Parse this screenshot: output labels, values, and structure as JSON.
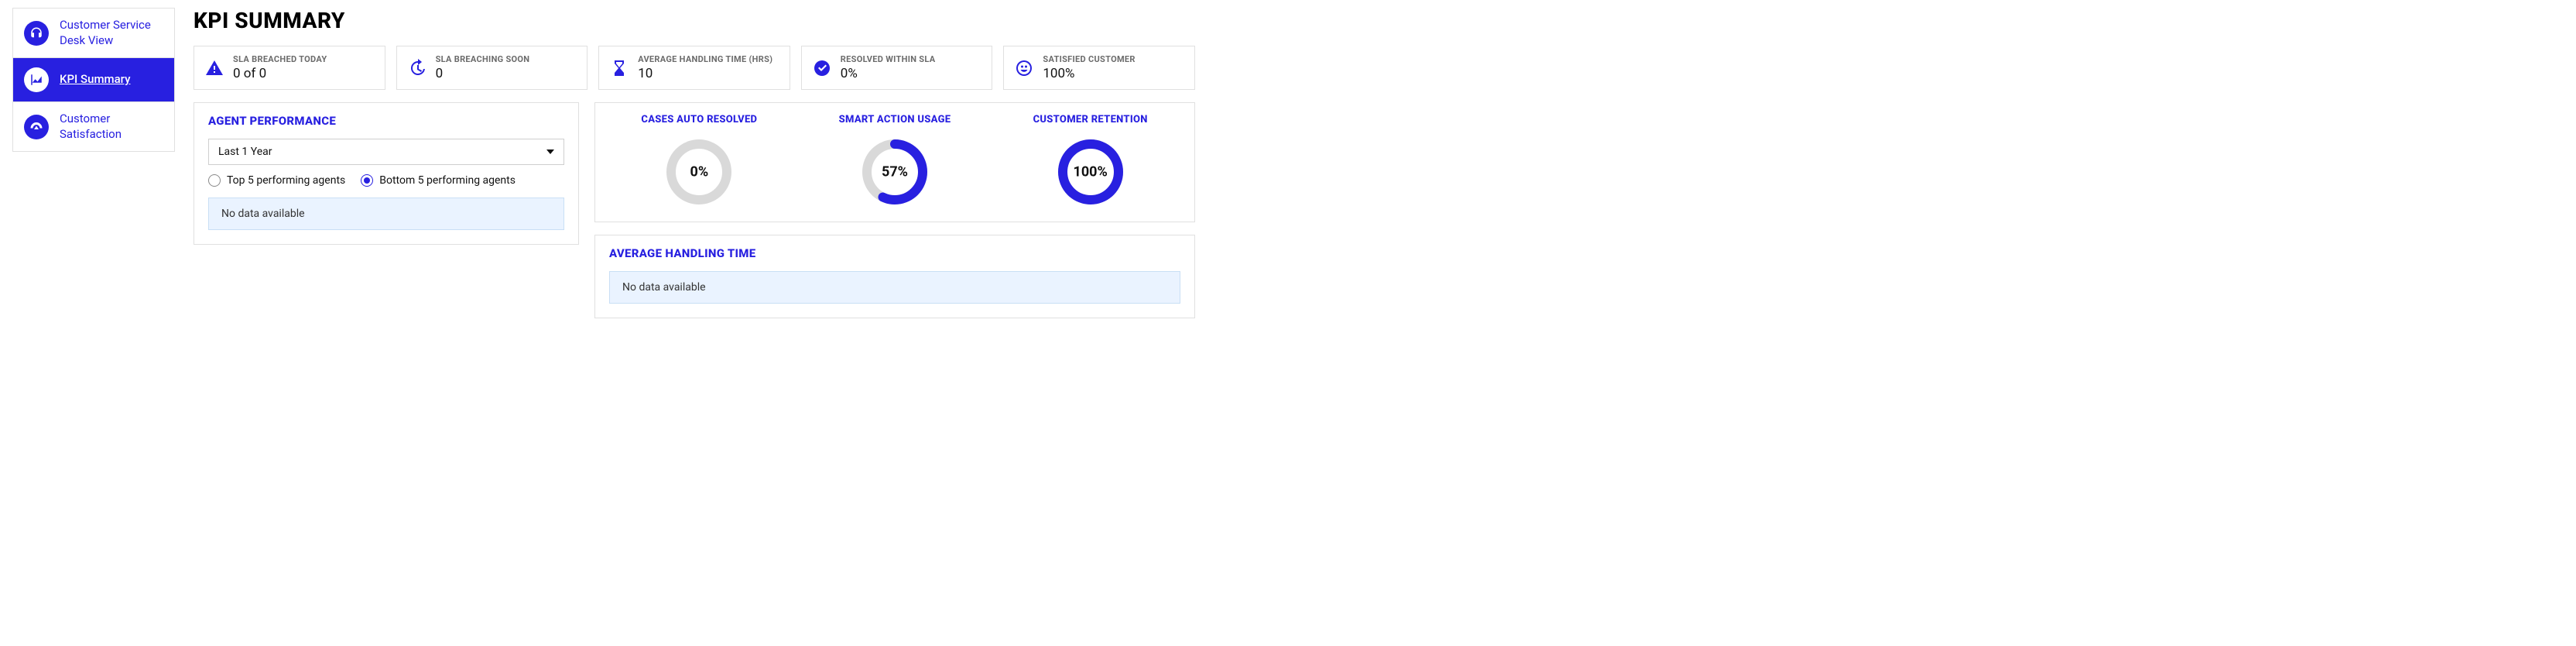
{
  "colors": {
    "accent": "#2820e0",
    "track": "#d9d9d9",
    "panel_border": "#e0e0e0",
    "info_bg": "#eaf3ff",
    "info_border": "#c9dff5",
    "label_grey": "#6b6b6b"
  },
  "sidebar": {
    "items": [
      {
        "label": "Customer Service Desk View",
        "icon": "headset",
        "active": false
      },
      {
        "label": "KPI Summary",
        "icon": "area-chart",
        "active": true
      },
      {
        "label": "Customer Satisfaction",
        "icon": "gauge",
        "active": false
      }
    ]
  },
  "page_title": "KPI SUMMARY",
  "kpis": [
    {
      "label": "SLA BREACHED TODAY",
      "value": "0 of 0",
      "icon": "alert-triangle"
    },
    {
      "label": "SLA BREACHING SOON",
      "value": "0",
      "icon": "history"
    },
    {
      "label": "AVERAGE HANDLING TIME (HRS)",
      "value": "10",
      "icon": "hourglass"
    },
    {
      "label": "RESOLVED WITHIN SLA",
      "value": "0%",
      "icon": "check-circle"
    },
    {
      "label": "SATISFIED CUSTOMER",
      "value": "100%",
      "icon": "smile"
    }
  ],
  "agent_performance": {
    "title": "AGENT PERFORMANCE",
    "period_selected": "Last 1 Year",
    "radio_options": [
      {
        "label": "Top 5 performing agents",
        "selected": false
      },
      {
        "label": "Bottom 5 performing agents",
        "selected": true
      }
    ],
    "no_data_text": "No data available"
  },
  "donuts": {
    "stroke_width": 12,
    "track_color": "#d9d9d9",
    "fill_color": "#2820e0",
    "items": [
      {
        "title": "CASES AUTO RESOLVED",
        "percent": 0,
        "label": "0%"
      },
      {
        "title": "SMART ACTION USAGE",
        "percent": 57,
        "label": "57%"
      },
      {
        "title": "CUSTOMER RETENTION",
        "percent": 100,
        "label": "100%"
      }
    ]
  },
  "avg_handling": {
    "title": "AVERAGE HANDLING TIME",
    "no_data_text": "No data available"
  }
}
